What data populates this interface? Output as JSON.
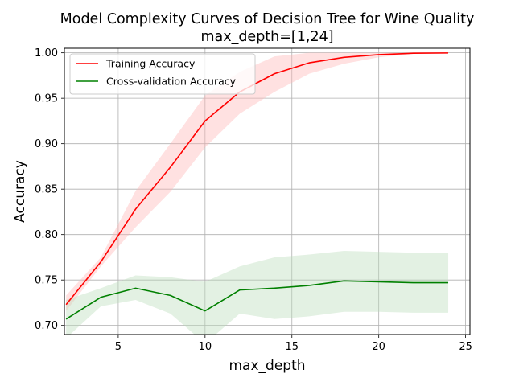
{
  "chart_data": {
    "type": "line",
    "title": "Model Complexity Curves of Decision Tree for Wine Quality",
    "subtitle": "max_depth=[1,24]",
    "xlabel": "max_depth",
    "ylabel": "Accuracy",
    "xlim": [
      1.9,
      25.25
    ],
    "ylim": [
      0.69,
      1.005
    ],
    "xticks": [
      5,
      10,
      15,
      20,
      25
    ],
    "xtick_labels": [
      "5",
      "10",
      "15",
      "20",
      "25"
    ],
    "yticks": [
      0.7,
      0.75,
      0.8,
      0.85,
      0.9,
      0.95,
      1.0
    ],
    "ytick_labels": [
      "0.70",
      "0.75",
      "0.80",
      "0.85",
      "0.90",
      "0.95",
      "1.00"
    ],
    "grid": true,
    "legend_position": "upper-left",
    "x": [
      2,
      4,
      6,
      8,
      10,
      12,
      14,
      16,
      18,
      20,
      22,
      24
    ],
    "series": [
      {
        "name": "Training Accuracy",
        "color": "#ff0000",
        "band_color": "#ffb3b3",
        "values": [
          0.723,
          0.77,
          0.828,
          0.874,
          0.925,
          0.957,
          0.977,
          0.989,
          0.995,
          0.998,
          0.9995,
          0.9998
        ],
        "lower": [
          0.716,
          0.765,
          0.808,
          0.847,
          0.896,
          0.933,
          0.957,
          0.977,
          0.988,
          0.995,
          0.999,
          0.9995
        ],
        "upper": [
          0.733,
          0.775,
          0.848,
          0.9,
          0.953,
          0.979,
          0.996,
          1.0,
          1.0,
          1.0,
          1.0,
          1.0
        ]
      },
      {
        "name": "Cross-validation Accuracy",
        "color": "#008000",
        "band_color": "#b8dcb8",
        "values": [
          0.707,
          0.731,
          0.741,
          0.733,
          0.716,
          0.739,
          0.741,
          0.744,
          0.749,
          0.748,
          0.747,
          0.747
        ],
        "lower": [
          0.686,
          0.721,
          0.728,
          0.713,
          0.68,
          0.713,
          0.707,
          0.71,
          0.715,
          0.715,
          0.714,
          0.714
        ],
        "upper": [
          0.728,
          0.741,
          0.755,
          0.753,
          0.748,
          0.765,
          0.775,
          0.778,
          0.782,
          0.781,
          0.78,
          0.78
        ]
      }
    ]
  }
}
